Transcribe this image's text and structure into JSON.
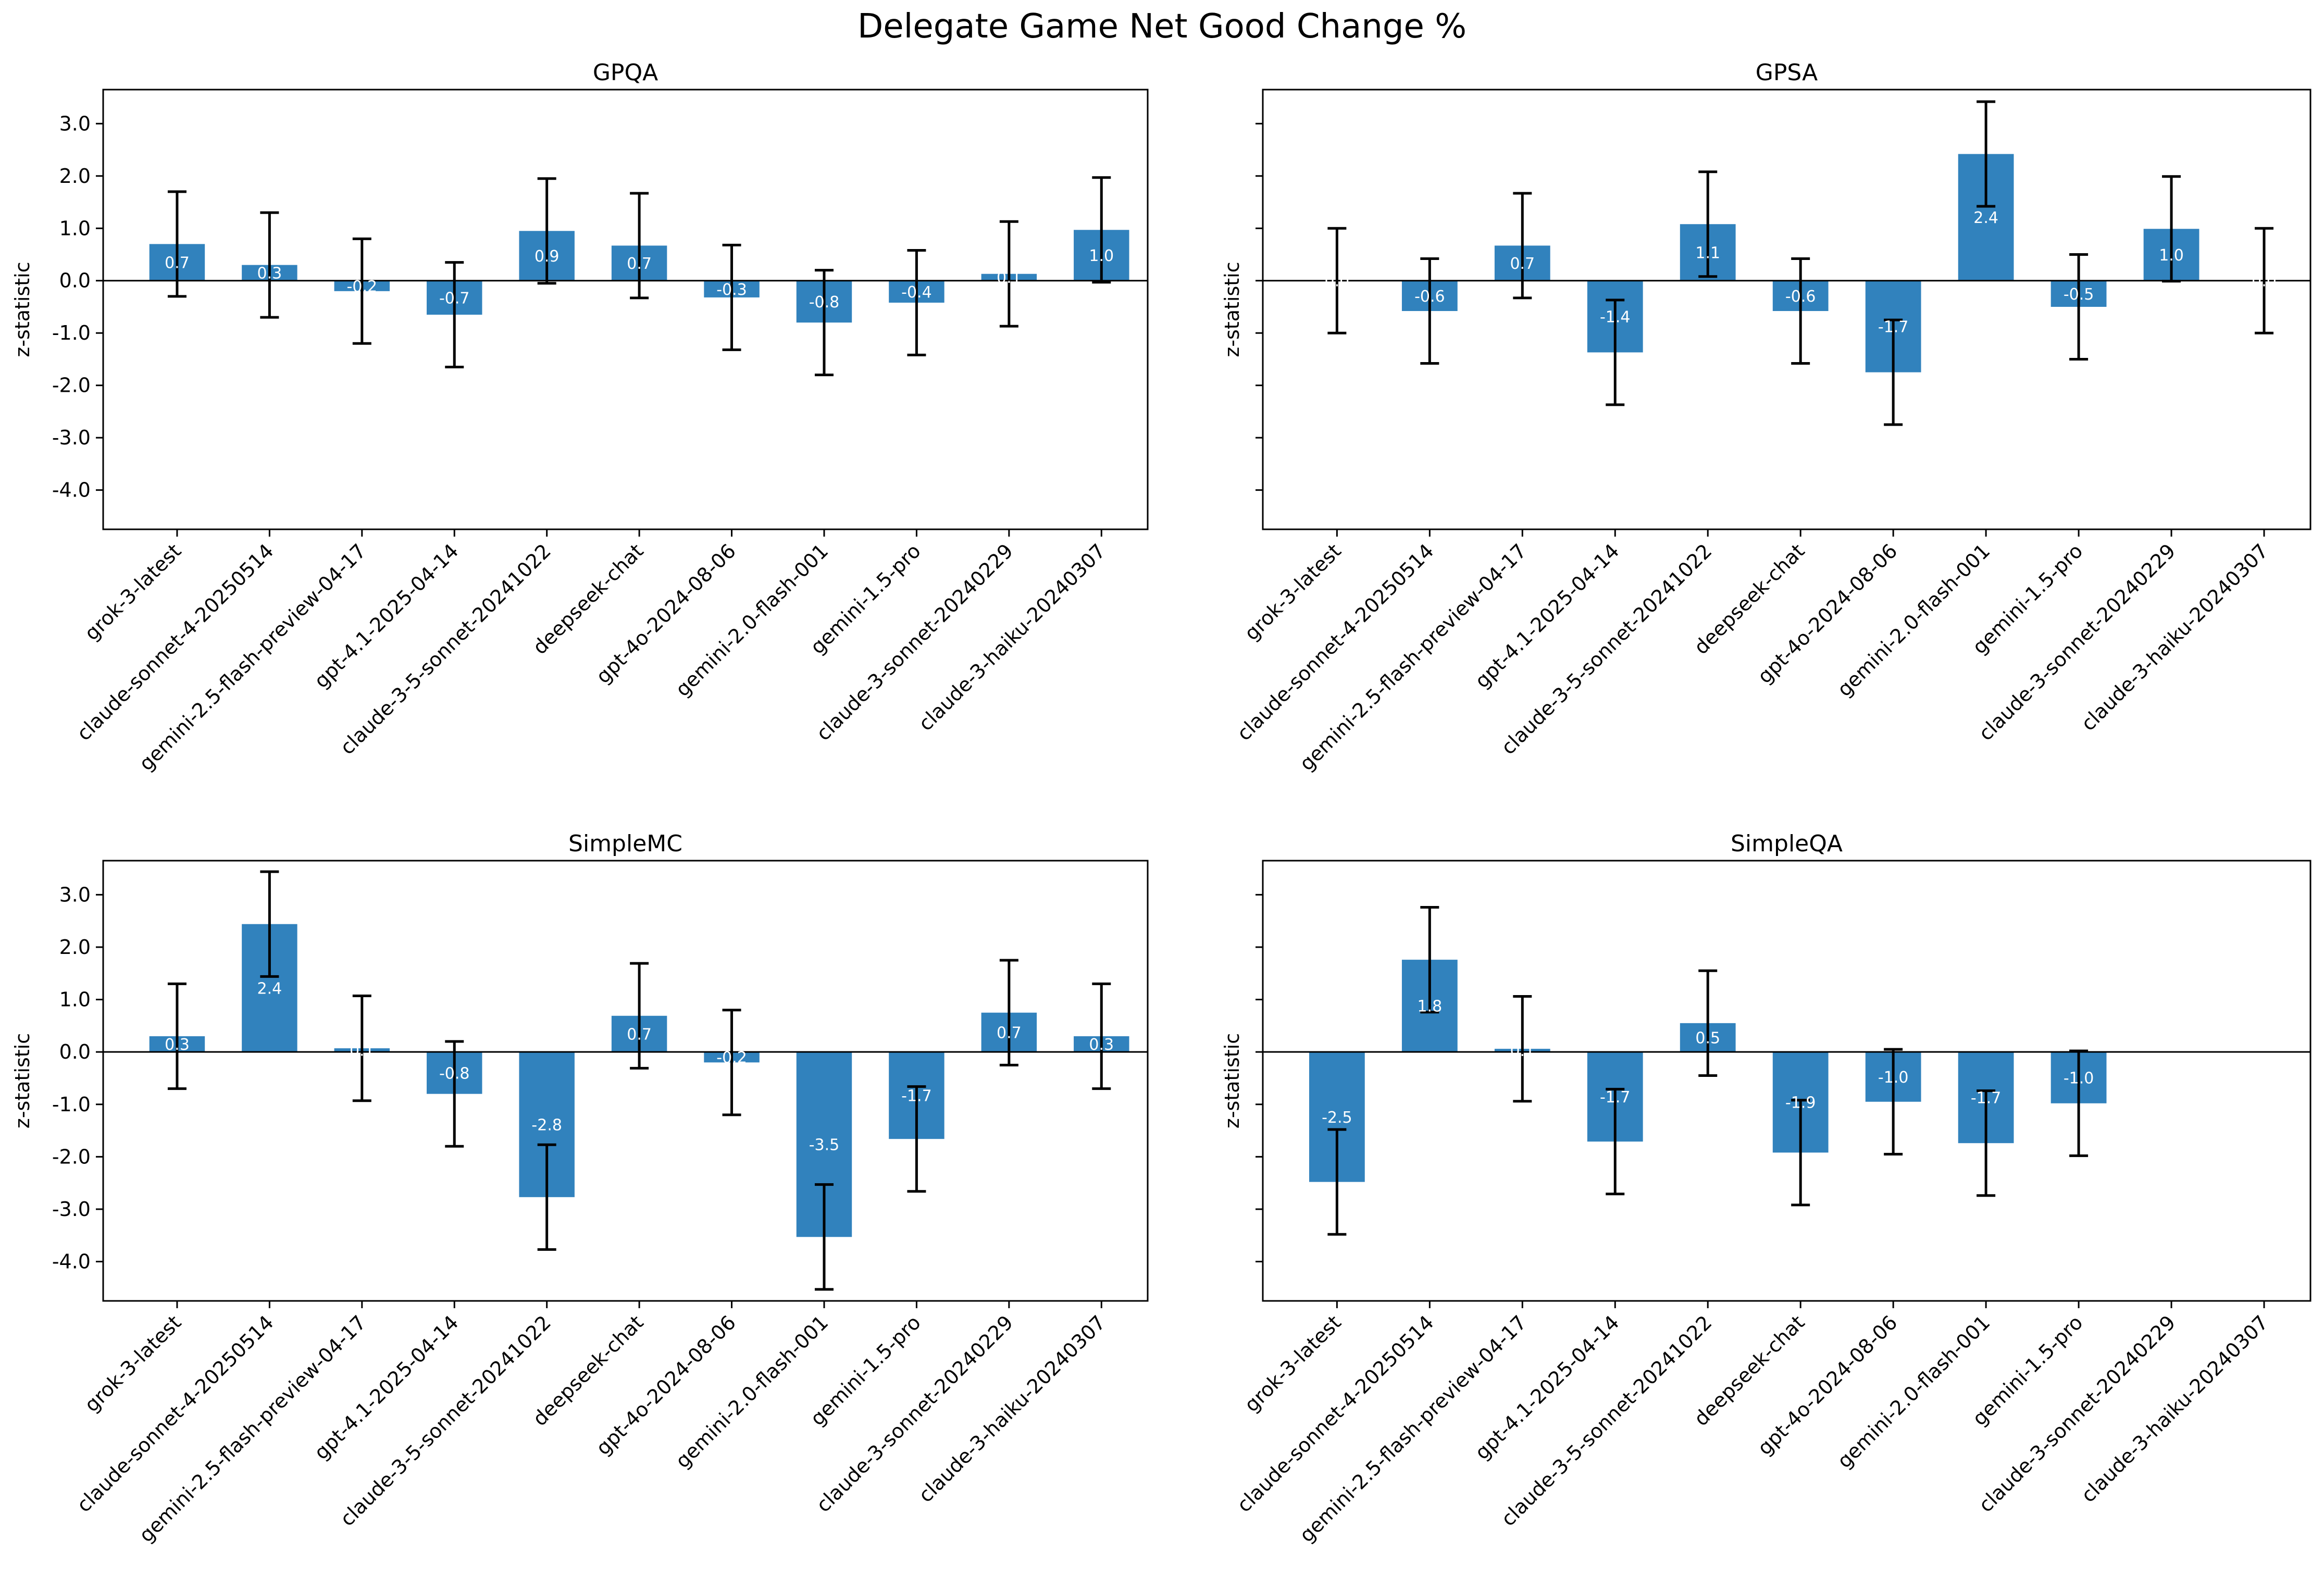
{
  "figure": {
    "title": "Delegate Game Net Good Change %"
  },
  "chart_data": [
    {
      "type": "bar",
      "title": "GPQA",
      "ylabel": "z-statistic",
      "ylim": [
        -4.75,
        3.65
      ],
      "yticks": [
        "3.0",
        "2.0",
        "1.0",
        "0.0",
        "-1.0",
        "-2.0",
        "-3.0",
        "-4.0"
      ],
      "categories": [
        "grok-3-latest",
        "claude-sonnet-4-20250514",
        "gemini-2.5-flash-preview-04-17",
        "gpt-4.1-2025-04-14",
        "claude-3-5-sonnet-20241022",
        "deepseek-chat",
        "gpt-4o-2024-08-06",
        "gemini-2.0-flash-001",
        "gemini-1.5-pro",
        "claude-3-sonnet-20240229",
        "claude-3-haiku-20240307"
      ],
      "values": [
        0.7,
        0.3,
        -0.2,
        -0.65,
        0.95,
        0.67,
        -0.32,
        -0.8,
        -0.42,
        0.13,
        0.97
      ],
      "errors": [
        1.0,
        1.0,
        1.0,
        1.0,
        1.0,
        1.0,
        1.0,
        1.0,
        1.0,
        1.0,
        1.0
      ],
      "labels": [
        "0.7",
        "0.3",
        "-0.2",
        "-0.7",
        "0.9",
        "0.7",
        "-0.3",
        "-0.8",
        "-0.4",
        "0.1",
        "1.0"
      ],
      "bar_color": "#3182bd",
      "grid": false
    },
    {
      "type": "bar",
      "title": "GPSA",
      "ylabel": "z-statistic",
      "ylim": [
        -4.75,
        3.65
      ],
      "yticks": [],
      "categories": [
        "grok-3-latest",
        "claude-sonnet-4-20250514",
        "gemini-2.5-flash-preview-04-17",
        "gpt-4.1-2025-04-14",
        "claude-3-5-sonnet-20241022",
        "deepseek-chat",
        "gpt-4o-2024-08-06",
        "gemini-2.0-flash-001",
        "gemini-1.5-pro",
        "claude-3-sonnet-20240229",
        "claude-3-haiku-20240307"
      ],
      "values": [
        0.0,
        -0.58,
        0.67,
        -1.37,
        1.08,
        -0.58,
        -1.75,
        2.42,
        -0.5,
        0.99,
        0.0
      ],
      "errors": [
        1.0,
        1.0,
        1.0,
        1.0,
        1.0,
        1.0,
        1.0,
        1.0,
        1.0,
        1.0,
        1.0
      ],
      "labels": [
        "0.0",
        "-0.6",
        "0.7",
        "-1.4",
        "1.1",
        "-0.6",
        "-1.7",
        "2.4",
        "-0.5",
        "1.0",
        "0.0"
      ],
      "bar_color": "#3182bd",
      "grid": false
    },
    {
      "type": "bar",
      "title": "SimpleMC",
      "ylabel": "z-statistic",
      "ylim": [
        -4.75,
        3.65
      ],
      "yticks": [
        "3.0",
        "2.0",
        "1.0",
        "0.0",
        "-1.0",
        "-2.0",
        "-3.0",
        "-4.0"
      ],
      "categories": [
        "grok-3-latest",
        "claude-sonnet-4-20250514",
        "gemini-2.5-flash-preview-04-17",
        "gpt-4.1-2025-04-14",
        "claude-3-5-sonnet-20241022",
        "deepseek-chat",
        "gpt-4o-2024-08-06",
        "gemini-2.0-flash-001",
        "gemini-1.5-pro",
        "claude-3-sonnet-20240229",
        "claude-3-haiku-20240307"
      ],
      "values": [
        0.3,
        2.44,
        0.07,
        -0.8,
        -2.77,
        0.69,
        -0.2,
        -3.53,
        -1.66,
        0.75,
        0.3
      ],
      "errors": [
        1.0,
        1.0,
        1.0,
        1.0,
        1.0,
        1.0,
        1.0,
        1.0,
        1.0,
        1.0,
        1.0
      ],
      "labels": [
        "0.3",
        "2.4",
        "0.1",
        "-0.8",
        "-2.8",
        "0.7",
        "-0.2",
        "-3.5",
        "-1.7",
        "0.7",
        "0.3"
      ],
      "bar_color": "#3182bd",
      "grid": false
    },
    {
      "type": "bar",
      "title": "SimpleQA",
      "ylabel": "z-statistic",
      "ylim": [
        -4.75,
        3.65
      ],
      "yticks": [],
      "categories": [
        "grok-3-latest",
        "claude-sonnet-4-20250514",
        "gemini-2.5-flash-preview-04-17",
        "gpt-4.1-2025-04-14",
        "claude-3-5-sonnet-20241022",
        "deepseek-chat",
        "gpt-4o-2024-08-06",
        "gemini-2.0-flash-001",
        "gemini-1.5-pro",
        "claude-3-sonnet-20240229",
        "claude-3-haiku-20240307"
      ],
      "values": [
        -2.48,
        1.76,
        0.06,
        -1.71,
        0.55,
        -1.92,
        -0.95,
        -1.74,
        -0.98,
        null,
        null
      ],
      "errors": [
        1.0,
        1.0,
        1.0,
        1.0,
        1.0,
        1.0,
        1.0,
        1.0,
        1.0,
        null,
        null
      ],
      "labels": [
        "-2.5",
        "1.8",
        "0.1",
        "-1.7",
        "0.5",
        "-1.9",
        "-1.0",
        "-1.7",
        "-1.0",
        "",
        ""
      ],
      "bar_color": "#3182bd",
      "grid": false
    }
  ]
}
